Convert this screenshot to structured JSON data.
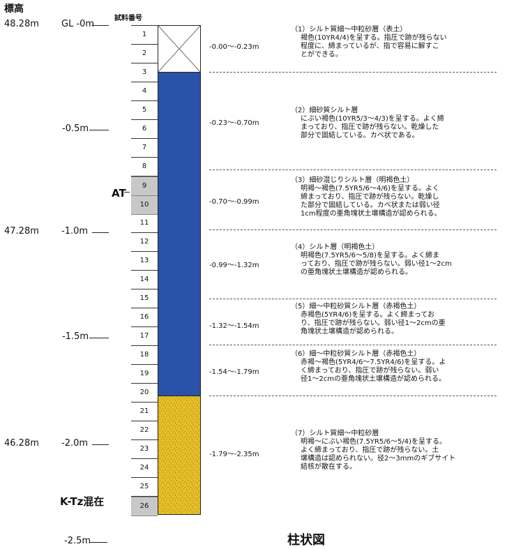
{
  "header": {
    "elevation_label": "標高",
    "sample_no_label": "試料番号"
  },
  "elevations": [
    {
      "elev": "48.28m",
      "depth": "GL -0m"
    },
    {
      "elev": "",
      "depth": "-0.5m"
    },
    {
      "elev": "47.28m",
      "depth": "-1.0m"
    },
    {
      "elev": "",
      "depth": "-1.5m"
    },
    {
      "elev": "46.28m",
      "depth": "-2.0m"
    },
    {
      "elev": "",
      "depth": "-2.5m"
    }
  ],
  "samples": [
    "1",
    "2",
    "3",
    "4",
    "5",
    "6",
    "7",
    "8",
    "9",
    "10",
    "11",
    "12",
    "13",
    "14",
    "15",
    "16",
    "17",
    "18",
    "19",
    "20",
    "21",
    "22",
    "23",
    "24",
    "25",
    "26"
  ],
  "highlighted_samples": [
    "9",
    "10",
    "26"
  ],
  "markers": {
    "at": "AT",
    "ktz": "K-Tz混在"
  },
  "layers": [
    {
      "range": "-0.00～-0.23m",
      "lines": [
        "（1）シルト質細～中粒砂層（表土）",
        "褐色(10YR4/4)を呈する。指圧で跡が残らない",
        "程度に、締まっているが、指で容易に解すこ",
        "とができる。"
      ]
    },
    {
      "range": "-0.23～-0.70m",
      "lines": [
        "（2）細砂質シルト層",
        "にぶい褐色(10YR5/3～4/3)を呈する。よく締",
        "まっており、指圧で跡が残らない。乾燥した",
        "部分で固結している。カベ状である。"
      ]
    },
    {
      "range": "-0.70～-0.99m",
      "lines": [
        "（3）細砂混じりシルト層（明褐色土）",
        "明褐～褐色(7.5YR5/6～4/6)を呈する。よく",
        "締まっており、指圧で跡が残らない。乾燥し",
        "た部分で固結している。カベ状または弱い径",
        "1cm程度の亜角塊状土壌構造が認められる。"
      ]
    },
    {
      "range": "-0.99～-1.32m",
      "lines": [
        "（4）シルト層（明褐色土）",
        "明褐色(7.5YR5/6～5/8)を呈する。よく締ま",
        "っており、指圧で跡が残らない。弱い径1～2cm",
        "の亜角塊状土壌構造が認められる。"
      ]
    },
    {
      "range": "-1.32～-1.54m",
      "lines": [
        "（5）細～中粒砂質シルト層（赤褐色土）",
        "赤褐色(5YR4/6)を呈する。よく締まってお",
        "り、指圧で跡が残らない。弱い径1～2cmの亜",
        "角塊状土壌構造が認められる。"
      ]
    },
    {
      "range": "-1.54～-1.79m",
      "lines": [
        "（6）細～中粒砂質シルト層（赤褐色土）",
        "赤褐～褐色(5YR4/6～7.5YR4/6)を呈する。よ",
        "く締まっており、指圧で跡が残らない。弱い",
        "径1～2cmの亜角塊状土壌構造が認められる。"
      ]
    },
    {
      "range": "-1.79～-2.35m",
      "lines": [
        "（7）シルト質細～中粒砂層",
        "明褐～にぶい褐色(7.5YR5/6～5/4)を呈する。",
        "よく締まっており、指圧で跡が残らない。土",
        "壌構造は認められない。径2～3mmのギブサイト",
        "結核が散在する。"
      ]
    }
  ],
  "caption": "柱状図",
  "colors": {
    "layer2_6_fill": "#2a52a8",
    "layer7_fill": "#e6c02a",
    "layer7_speckle": "#a07c10"
  }
}
